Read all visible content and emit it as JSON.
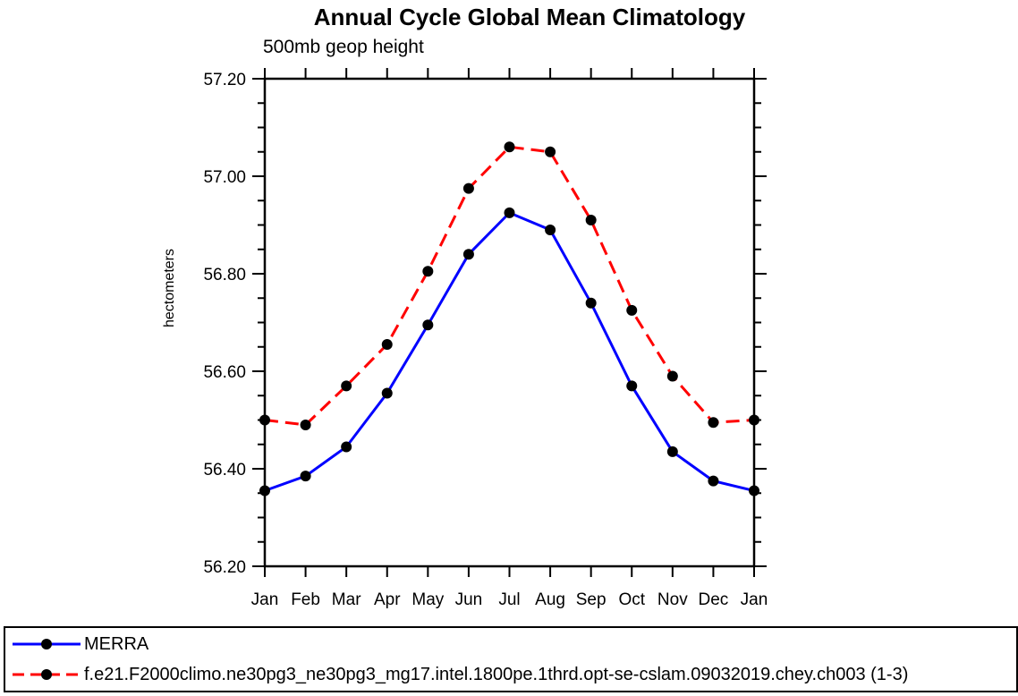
{
  "title": "Annual Cycle Global Mean Climatology",
  "subtitle": "500mb geop height",
  "chart_data": {
    "type": "line",
    "categories": [
      "Jan",
      "Feb",
      "Mar",
      "Apr",
      "May",
      "Jun",
      "Jul",
      "Aug",
      "Sep",
      "Oct",
      "Nov",
      "Dec",
      "Jan"
    ],
    "xlabel": "",
    "ylabel": "hectometers",
    "ylim": [
      56.2,
      57.2
    ],
    "ytick_major": 0.2,
    "ytick_minor": 0.05,
    "ytick_label_decimals": 2,
    "grid": false,
    "legend_position": "bottom",
    "axis_color": "#000000",
    "marker_color": "#000000",
    "series": [
      {
        "name": "MERRA",
        "color": "#0000ff",
        "style": "solid",
        "marker": "circle",
        "values": [
          56.355,
          56.385,
          56.445,
          56.555,
          56.695,
          56.84,
          56.925,
          56.89,
          56.74,
          56.57,
          56.435,
          56.375,
          56.355
        ]
      },
      {
        "name": "f.e21.F2000climo.ne30pg3_ne30pg3_mg17.intel.1800pe.1thrd.opt-se-cslam.09032019.chey.ch003 (1-3)",
        "color": "#ff0000",
        "style": "dashed",
        "marker": "circle",
        "values": [
          56.5,
          56.49,
          56.57,
          56.655,
          56.805,
          56.975,
          57.06,
          57.05,
          56.91,
          56.725,
          56.59,
          56.495,
          56.5
        ]
      }
    ]
  }
}
